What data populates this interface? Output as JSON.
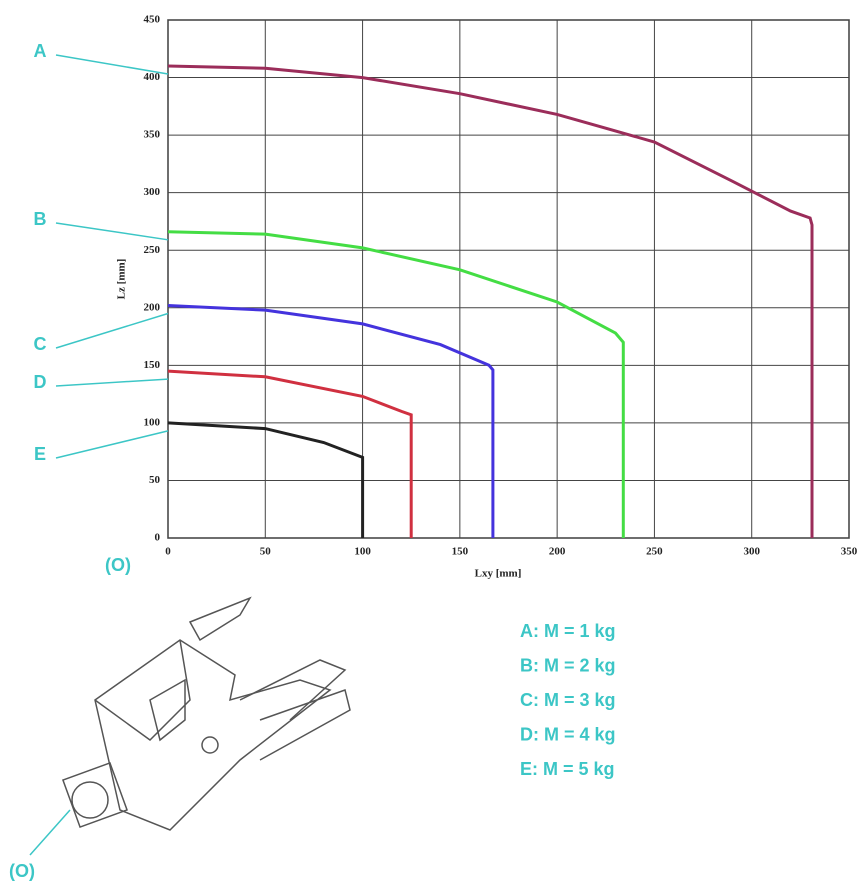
{
  "chart_data": {
    "type": "line",
    "x_label": "Lxy [mm]",
    "y_label": "Lz [mm]",
    "origin_label": "(O)",
    "xlim": [
      0,
      350
    ],
    "xticks": [
      0,
      50,
      100,
      150,
      200,
      250,
      300,
      350
    ],
    "ylim": [
      0,
      450
    ],
    "yticks": [
      0,
      50,
      100,
      150,
      200,
      250,
      300,
      350,
      400,
      450
    ],
    "grid": true,
    "series": [
      {
        "label": "A",
        "name": "A: M = 1 kg",
        "color": "#9b2d5a",
        "x": [
          0,
          50,
          100,
          150,
          200,
          250,
          290,
          320,
          330,
          331,
          331
        ],
        "values": [
          410,
          408,
          400,
          386,
          368,
          344,
          310,
          284,
          278,
          272,
          0
        ]
      },
      {
        "label": "B",
        "name": "B: M = 2 kg",
        "color": "#44dd44",
        "x": [
          0,
          50,
          100,
          150,
          200,
          230,
          234,
          234
        ],
        "values": [
          266,
          264,
          252,
          233,
          205,
          178,
          170,
          0
        ]
      },
      {
        "label": "C",
        "name": "C: M = 3 kg",
        "color": "#4433dd",
        "x": [
          0,
          50,
          100,
          140,
          165,
          167,
          167
        ],
        "values": [
          202,
          198,
          186,
          168,
          150,
          146,
          0
        ]
      },
      {
        "label": "D",
        "name": "D: M = 4 kg",
        "color": "#d03040",
        "x": [
          0,
          50,
          100,
          120,
          125,
          125
        ],
        "values": [
          145,
          140,
          123,
          110,
          107,
          0
        ]
      },
      {
        "label": "E",
        "name": "E: M = 5 kg",
        "color": "#222222",
        "x": [
          0,
          50,
          80,
          100,
          100
        ],
        "values": [
          100,
          95,
          83,
          70,
          0
        ]
      }
    ]
  }
}
